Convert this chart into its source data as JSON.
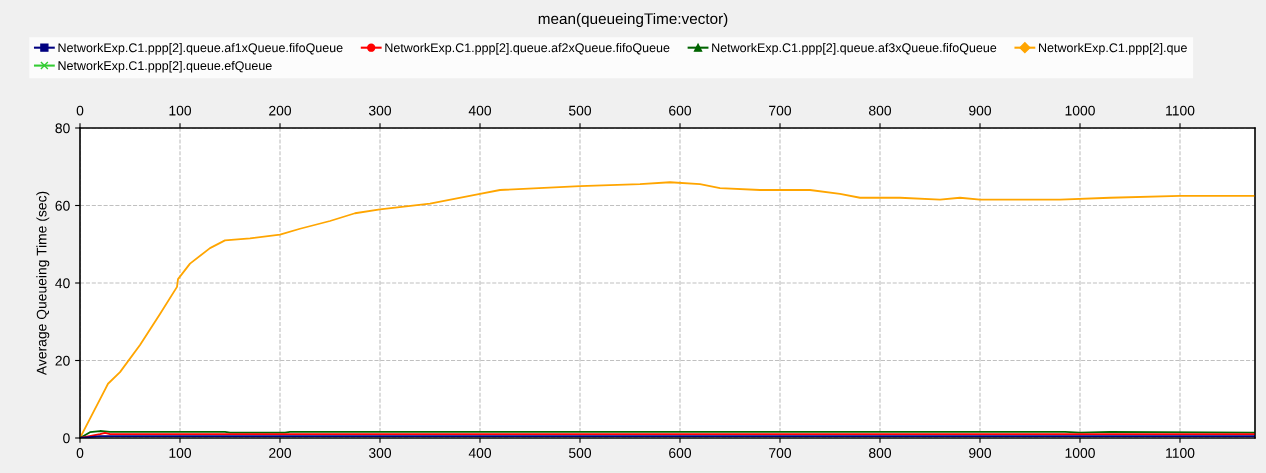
{
  "chart_data": {
    "type": "line",
    "title": "mean(queueingTime:vector)",
    "ylabel": "Average Queueing Time (sec)",
    "xlim": [
      0,
      1175
    ],
    "xticks": [
      0,
      100,
      200,
      300,
      400,
      500,
      600,
      700,
      800,
      900,
      1000,
      1100
    ],
    "x2lim": [
      0,
      1175
    ],
    "x2ticks": [
      0,
      100,
      200,
      300,
      400,
      500,
      600,
      700,
      800,
      900,
      1000,
      1100
    ],
    "ylim": [
      0,
      80
    ],
    "yticks": [
      0,
      20,
      40,
      60,
      80
    ],
    "grid": true,
    "legend": "top",
    "series": [
      {
        "name": "NetworkExp.C1.ppp[2].queue.af1xQueue.fifoQueue",
        "color": "#000080",
        "x": [
          0,
          20,
          150,
          1175
        ],
        "values": [
          0,
          0.5,
          0.5,
          0.5
        ]
      },
      {
        "name": "NetworkExp.C1.ppp[2].queue.af2xQueue.fifoQueue",
        "color": "#ff0000",
        "x": [
          0,
          20,
          25,
          30,
          1175
        ],
        "values": [
          0,
          1,
          1.3,
          1,
          1
        ]
      },
      {
        "name": "NetworkExp.C1.ppp[2].queue.af3xQueue.fifoQueue",
        "color": "#006400",
        "x": [
          0,
          10,
          20,
          30,
          145,
          150,
          205,
          210,
          985,
          1000,
          1030,
          1175
        ],
        "values": [
          0,
          1.5,
          1.8,
          1.6,
          1.6,
          1.4,
          1.4,
          1.6,
          1.6,
          1.4,
          1.6,
          1.4
        ]
      },
      {
        "name": "NetworkExp.C1.ppp[2].que",
        "color": "#ffa500",
        "x": [
          0,
          10,
          25,
          28,
          40,
          60,
          80,
          97,
          98,
          110,
          130,
          145,
          170,
          200,
          220,
          250,
          275,
          300,
          350,
          400,
          420,
          500,
          560,
          590,
          620,
          640,
          680,
          710,
          730,
          760,
          780,
          820,
          860,
          880,
          900,
          980,
          1030,
          1100,
          1175
        ],
        "values": [
          0,
          5,
          12.5,
          14,
          17,
          24,
          32,
          39,
          41,
          45,
          49,
          51,
          51.5,
          52.5,
          54,
          56,
          58,
          59,
          60.5,
          63,
          64,
          65,
          65.5,
          66,
          65.5,
          64.5,
          64,
          64,
          64,
          63,
          62,
          62,
          61.5,
          62,
          61.5,
          61.5,
          62,
          62.5,
          62.5
        ]
      },
      {
        "name": "NetworkExp.C1.ppp[2].queue.efQueue",
        "color": "#33cc33"
      }
    ]
  }
}
